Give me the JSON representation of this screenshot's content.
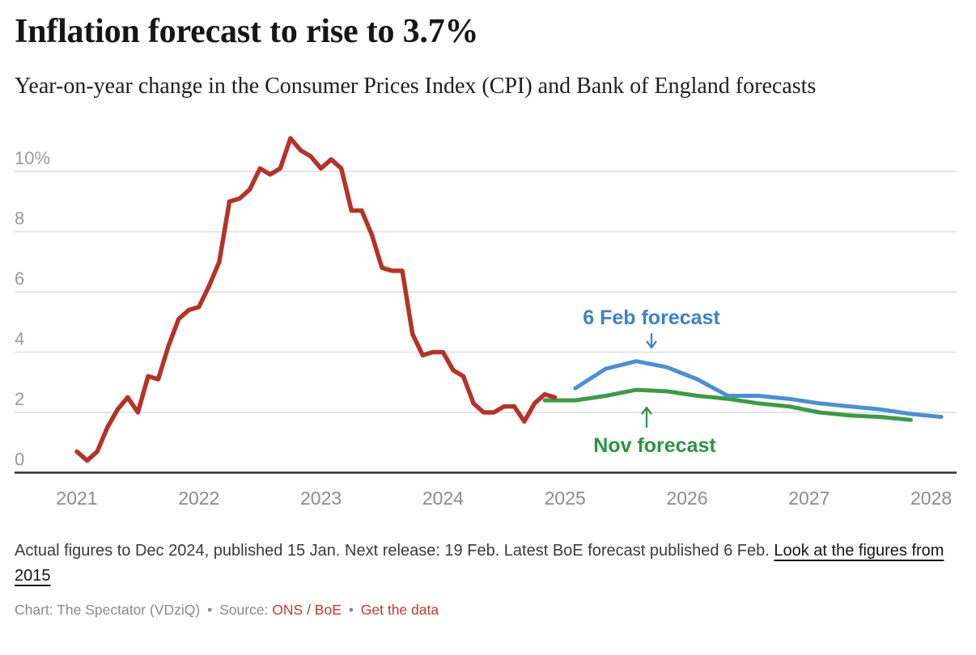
{
  "chart_data": {
    "type": "line",
    "title": "Inflation forecast to rise to 3.7%",
    "subtitle": "Year-on-year change in the Consumer Prices Index (CPI) and Bank of England forecasts",
    "unit": "%",
    "grid": "horizontal",
    "legend": "inline-annotations",
    "x_axis": {
      "ticks": [
        "2021",
        "2022",
        "2023",
        "2024",
        "2025",
        "2026",
        "2027",
        "2028"
      ],
      "range": [
        2021.0,
        2028.25
      ]
    },
    "y_axis": {
      "ticks": [
        {
          "value": 0,
          "label": "0"
        },
        {
          "value": 2,
          "label": "2"
        },
        {
          "value": 4,
          "label": "4"
        },
        {
          "value": 6,
          "label": "6"
        },
        {
          "value": 8,
          "label": "8"
        },
        {
          "value": 10,
          "label": "10%"
        }
      ],
      "range": [
        0,
        11.5
      ]
    },
    "series": [
      {
        "id": "cpi-actual",
        "name": "CPI actual (year-on-year % change)",
        "color": "#b43328",
        "cadence": "monthly",
        "x_start": 2021.0,
        "x_step_years": 0.083333,
        "values": [
          0.7,
          0.4,
          0.7,
          1.5,
          2.1,
          2.5,
          2.0,
          3.2,
          3.1,
          4.2,
          5.1,
          5.4,
          5.5,
          6.2,
          7.0,
          9.0,
          9.1,
          9.4,
          10.1,
          9.9,
          10.1,
          11.1,
          10.7,
          10.5,
          10.1,
          10.4,
          10.1,
          8.7,
          8.7,
          7.9,
          6.8,
          6.7,
          6.7,
          4.6,
          3.9,
          4.0,
          4.0,
          3.4,
          3.2,
          2.3,
          2.0,
          2.0,
          2.2,
          2.2,
          1.7,
          2.3,
          2.6,
          2.5
        ]
      },
      {
        "id": "nov-forecast",
        "name": "Nov forecast (Bank of England)",
        "color": "#3d9a46",
        "cadence": "quarterly",
        "x_start": 2024.8333,
        "x_step_years": 0.25,
        "values": [
          2.4,
          2.4,
          2.55,
          2.75,
          2.7,
          2.55,
          2.45,
          2.3,
          2.2,
          2.0,
          1.9,
          1.85,
          1.75
        ]
      },
      {
        "id": "feb-forecast",
        "name": "6 Feb forecast (Bank of England)",
        "color": "#4a90d2",
        "cadence": "quarterly",
        "x_start": 2025.0833,
        "x_step_years": 0.25,
        "values": [
          2.8,
          3.45,
          3.7,
          3.5,
          3.1,
          2.55,
          2.55,
          2.45,
          2.3,
          2.2,
          2.1,
          1.95,
          1.85
        ]
      }
    ],
    "annotations": [
      {
        "id": "feb",
        "text": "6 Feb forecast",
        "color": "#3b82c4"
      },
      {
        "id": "nov",
        "text": "Nov forecast",
        "color": "#2f9142"
      }
    ]
  },
  "notes": {
    "text": "Actual figures to Dec 2024, published 15 Jan. Next release: 19 Feb. Latest BoE forecast published 6 Feb.",
    "link": "Look at the figures from 2015"
  },
  "credit": {
    "chart_label": "Chart: The Spectator (VDziQ)",
    "bullet": "•",
    "source_label": "Source:",
    "source_value": "ONS / BoE",
    "get_data": "Get the data"
  },
  "colors": {
    "actual_red": "#b43328",
    "feb_forecast_blue": "#4a90d2",
    "nov_forecast_green": "#3d9a46",
    "link_red": "#c43a2d",
    "grid": "#e4e4e4",
    "axis": "#2e2e2e",
    "tick_text": "#9a9a9a"
  }
}
